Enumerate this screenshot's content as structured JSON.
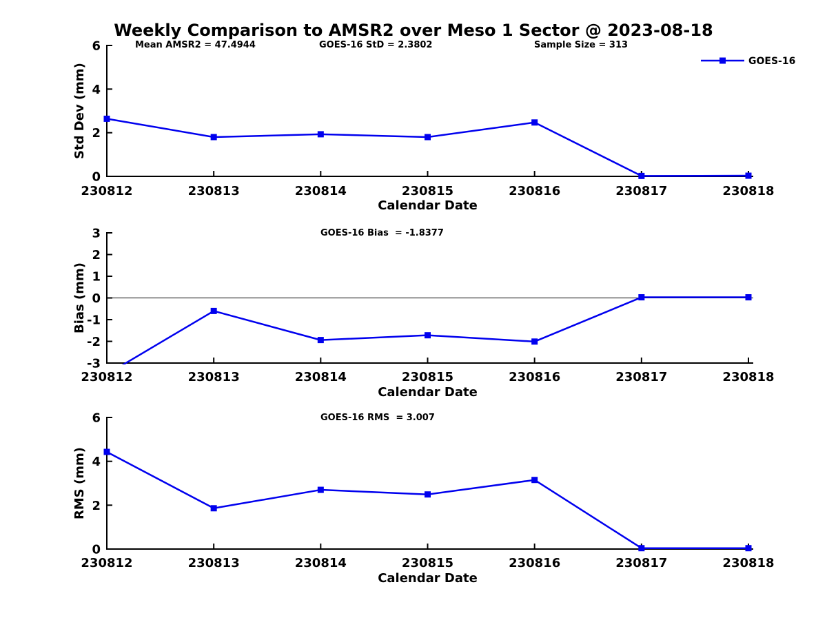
{
  "title": "Weekly Comparison to AMSR2 over Meso 1 Sector @ 2023-08-18",
  "legend": {
    "label": "GOES-16",
    "position": "top-right"
  },
  "colors": {
    "series": "#0000ee",
    "axis": "#000000",
    "text": "#000000",
    "background": "#ffffff"
  },
  "chart_data": [
    {
      "type": "line",
      "name": "std-dev",
      "annotations": [
        "Mean AMSR2 = 47.4944",
        "GOES-16 StD = 2.3802",
        "Sample Size = 313"
      ],
      "categories": [
        "230812",
        "230813",
        "230814",
        "230815",
        "230816",
        "230817",
        "230818"
      ],
      "series": [
        {
          "name": "GOES-16",
          "values": [
            2.64,
            1.8,
            1.93,
            1.8,
            2.47,
            0.02,
            0.03
          ]
        }
      ],
      "xlabel": "Calendar Date",
      "ylabel": "Std Dev (mm)",
      "ylim": [
        0,
        6
      ],
      "yticks": [
        0,
        2,
        4,
        6
      ],
      "grid": false,
      "marker": "square",
      "zero_line": false
    },
    {
      "type": "line",
      "name": "bias",
      "annotations": [
        "GOES-16 Bias  = -1.8377"
      ],
      "categories": [
        "230812",
        "230813",
        "230814",
        "230815",
        "230816",
        "230817",
        "230818"
      ],
      "series": [
        {
          "name": "GOES-16",
          "values": [
            -3.52,
            -0.6,
            -1.94,
            -1.72,
            -2.01,
            0.03,
            0.03
          ]
        }
      ],
      "xlabel": "Calendar Date",
      "ylabel": "Bias (mm)",
      "ylim": [
        -3,
        3
      ],
      "yticks": [
        -3,
        -2,
        -1,
        0,
        1,
        2,
        3
      ],
      "grid": false,
      "marker": "square",
      "zero_line": true
    },
    {
      "type": "line",
      "name": "rms",
      "annotations": [
        "GOES-16 RMS  = 3.007"
      ],
      "categories": [
        "230812",
        "230813",
        "230814",
        "230815",
        "230816",
        "230817",
        "230818"
      ],
      "series": [
        {
          "name": "GOES-16",
          "values": [
            4.43,
            1.86,
            2.7,
            2.49,
            3.15,
            0.04,
            0.04
          ]
        }
      ],
      "xlabel": "Calendar Date",
      "ylabel": "RMS (mm)",
      "ylim": [
        0,
        6
      ],
      "yticks": [
        0,
        2,
        4,
        6
      ],
      "grid": false,
      "marker": "square",
      "zero_line": false
    }
  ]
}
